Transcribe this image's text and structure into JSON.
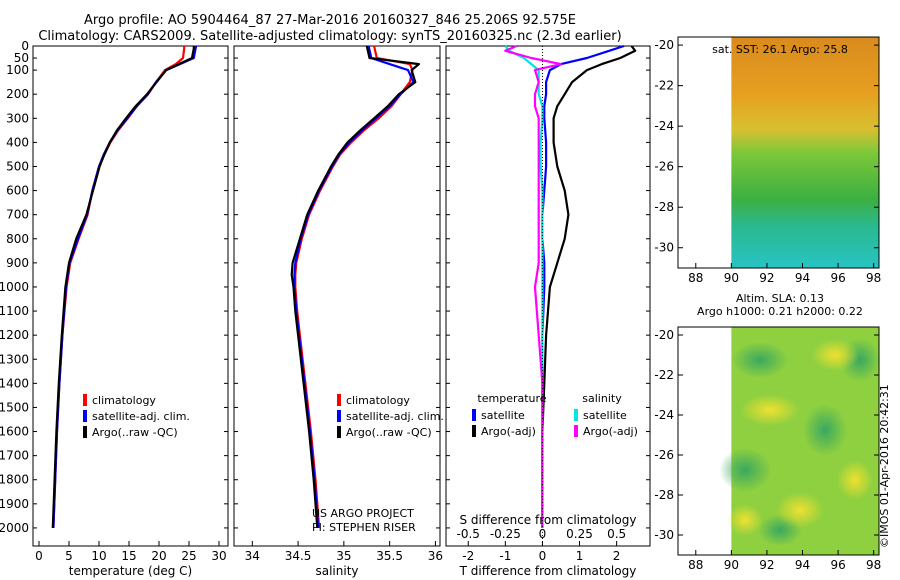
{
  "title_line1": "Argo profile: AO 5904464_87 27-Mar-2016 20160327_846 25.206S 92.575E",
  "title_line2": "Climatology: CARS2009. Satellite-adjusted climatology: synTS_20160325.nc (2.3d earlier)",
  "project_line1": "US ARGO PROJECT",
  "project_line2": "PI: STEPHEN RISER",
  "sst_header": "sat. SST: 26.1 Argo: 25.8",
  "sla_header1": "Altim. SLA: 0.13",
  "sla_header2": "Argo h1000: 0.21 h2000: 0.22",
  "stamp": "©IMOS 01-Apr-2016 20:42:31",
  "colors": {
    "climatology": "#ff0000",
    "satellite": "#0000ff",
    "argo": "#000000",
    "salinity_sat": "#00e5e5",
    "salinity_argo": "#ff00ff"
  },
  "chart_data": [
    {
      "type": "line",
      "xlabel": "temperature (deg C)",
      "xlim": [
        -1,
        31.5
      ],
      "xticks": [
        0,
        5,
        10,
        15,
        20,
        25,
        30
      ],
      "ylim": [
        0,
        2075
      ],
      "yticks": [
        0,
        50,
        100,
        200,
        300,
        400,
        500,
        600,
        700,
        800,
        900,
        1000,
        1100,
        1200,
        1300,
        1400,
        1500,
        1600,
        1700,
        1800,
        1900,
        2000
      ],
      "depth": [
        0,
        10,
        50,
        75,
        100,
        150,
        200,
        250,
        300,
        350,
        400,
        450,
        500,
        600,
        700,
        800,
        900,
        1000,
        1200,
        1400,
        1600,
        1800,
        2000
      ],
      "legend": [
        "climatology",
        "satellite-adj. clim.",
        "Argo(..raw -QC)"
      ],
      "series": [
        {
          "name": "climatology",
          "values": [
            24.2,
            24.2,
            24,
            22.8,
            21,
            19.5,
            18.2,
            16.3,
            14.8,
            13.2,
            11.9,
            10.9,
            10,
            8.9,
            8.1,
            6.6,
            5.2,
            4.6,
            3.9,
            3.4,
            3,
            2.7,
            2.4
          ]
        },
        {
          "name": "satellite-adj. clim.",
          "values": [
            26.2,
            26.1,
            25.8,
            23.5,
            21.2,
            19.5,
            18.1,
            16.3,
            14.7,
            13.1,
            11.8,
            10.8,
            10,
            8.9,
            8,
            6.5,
            5.1,
            4.5,
            3.9,
            3.4,
            3,
            2.7,
            2.4
          ]
        },
        {
          "name": "Argo(..raw -QC)",
          "values": [
            25.8,
            25.8,
            25.5,
            23.3,
            21.2,
            19.6,
            18,
            16.1,
            14.5,
            13,
            11.8,
            10.9,
            10.1,
            9,
            7.9,
            6.2,
            5,
            4.4,
            3.8,
            3.3,
            2.9,
            2.6,
            2.3
          ]
        }
      ]
    },
    {
      "type": "line",
      "xlabel": "salinity",
      "xlim": [
        33.8,
        36.05
      ],
      "xticks": [
        34,
        34.5,
        35,
        35.5,
        36
      ],
      "ylim": [
        0,
        2075
      ],
      "depth": [
        0,
        50,
        75,
        100,
        150,
        200,
        250,
        300,
        350,
        400,
        450,
        500,
        600,
        700,
        800,
        900,
        950,
        1000,
        1100,
        1200,
        1400,
        1600,
        1800,
        2000
      ],
      "legend": [
        "climatology",
        "satellite-adj. clim.",
        "Argo(..raw -QC)"
      ],
      "series": [
        {
          "name": "climatology",
          "values": [
            35.33,
            35.36,
            35.72,
            35.75,
            35.72,
            35.62,
            35.52,
            35.38,
            35.22,
            35.08,
            34.96,
            34.88,
            34.74,
            34.62,
            34.54,
            34.48,
            34.47,
            34.47,
            34.49,
            34.52,
            34.58,
            34.64,
            34.69,
            34.73
          ]
        },
        {
          "name": "satellite-adj. clim.",
          "values": [
            35.27,
            35.3,
            35.5,
            35.7,
            35.76,
            35.62,
            35.5,
            35.35,
            35.2,
            35.06,
            34.95,
            34.87,
            34.73,
            34.61,
            34.53,
            34.47,
            34.46,
            34.46,
            34.48,
            34.51,
            34.57,
            34.63,
            34.68,
            34.72
          ]
        },
        {
          "name": "Argo(..raw -QC)",
          "values": [
            35.25,
            35.28,
            35.82,
            35.74,
            35.78,
            35.6,
            35.48,
            35.33,
            35.18,
            35.04,
            34.94,
            34.86,
            34.72,
            34.6,
            34.52,
            34.44,
            34.43,
            34.45,
            34.47,
            34.5,
            34.56,
            34.62,
            34.67,
            34.71
          ]
        }
      ]
    },
    {
      "type": "line",
      "xlabel": "T difference from climatology",
      "xlabel_top": "S difference from climatology",
      "xlim": [
        -2.6,
        2.9
      ],
      "xticks": [
        -2,
        -1,
        0,
        1,
        2
      ],
      "xticks_top": [
        "-0.5",
        "-0.25",
        "0",
        "0.25",
        "0.5"
      ],
      "xticks_top_pos": [
        -2,
        -1,
        0,
        1,
        2
      ],
      "ylim": [
        0,
        2075
      ],
      "depth": [
        0,
        20,
        50,
        75,
        100,
        150,
        200,
        250,
        300,
        400,
        500,
        600,
        700,
        800,
        900,
        1000,
        1200,
        1400,
        1600,
        1800,
        2000
      ],
      "legend_temperature_title": "temperature",
      "legend_salinity_title": "salinity",
      "legend": [
        "satellite",
        "Argo(-adj)",
        "satellite",
        "Argo(-adj)"
      ],
      "series": [
        {
          "name": "satellite",
          "group": "temperature",
          "values": [
            2.2,
            1.8,
            1.2,
            0.5,
            0.2,
            0.1,
            0.1,
            0.05,
            0.05,
            0.1,
            0.1,
            0.05,
            0,
            0,
            0.05,
            0.05,
            0,
            0,
            0,
            0,
            0
          ]
        },
        {
          "name": "Argo(-adj)",
          "group": "temperature",
          "values": [
            2.4,
            2.5,
            2.1,
            1.6,
            1.2,
            0.8,
            0.6,
            0.4,
            0.3,
            0.3,
            0.4,
            0.6,
            0.7,
            0.6,
            0.4,
            0.2,
            0.1,
            0.05,
            0,
            0,
            0
          ]
        },
        {
          "name": "satellite",
          "group": "salinity",
          "values": [
            -1,
            -0.9,
            -0.5,
            -0.3,
            -0.1,
            -0.1,
            -0.1,
            0,
            0,
            -0.05,
            -0.05,
            0,
            0,
            0,
            0,
            0,
            0,
            0,
            0,
            0,
            0
          ]
        },
        {
          "name": "Argo(-adj)",
          "group": "salinity",
          "values": [
            -0.7,
            -1,
            -0.3,
            0.5,
            -0.2,
            -0.1,
            -0.2,
            -0.2,
            -0.1,
            -0.1,
            -0.1,
            -0.1,
            -0.1,
            -0.1,
            -0.1,
            -0.2,
            -0.1,
            0,
            0,
            0,
            0
          ]
        }
      ]
    },
    {
      "type": "heatmap",
      "title": "sat. SST: 26.1 Argo: 25.8",
      "xlim": [
        87,
        98.3
      ],
      "ylim": [
        -31,
        -19.6
      ],
      "xticks": [
        88,
        90,
        92,
        94,
        96,
        98
      ],
      "yticks": [
        -20,
        -22,
        -24,
        -26,
        -28,
        -30
      ],
      "data_lon_range": [
        90,
        98.3
      ]
    },
    {
      "type": "heatmap",
      "title": "Altim. SLA: 0.13",
      "xlim": [
        87,
        98.3
      ],
      "ylim": [
        -31,
        -19.6
      ],
      "xticks": [
        88,
        90,
        92,
        94,
        96,
        98
      ],
      "yticks": [
        -20,
        -22,
        -24,
        -26,
        -28,
        -30
      ],
      "data_lon_range": [
        90,
        98.3
      ]
    }
  ]
}
